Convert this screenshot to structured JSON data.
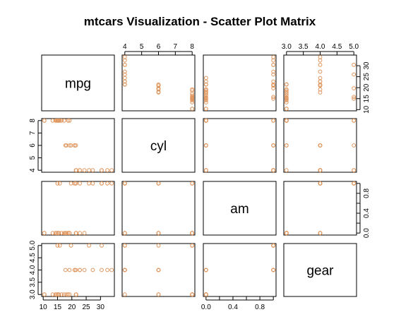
{
  "chart_data": {
    "type": "scatter",
    "title": "mtcars Visualization - Scatter Plot Matrix",
    "variables": [
      "mpg",
      "cyl",
      "am",
      "gear"
    ],
    "ranges": {
      "mpg": [
        10.4,
        33.9
      ],
      "cyl": [
        4,
        8
      ],
      "am": [
        0,
        1
      ],
      "gear": [
        3,
        5
      ]
    },
    "ticks": {
      "mpg": {
        "values": [
          10,
          15,
          20,
          25,
          30
        ],
        "labels": [
          "10",
          "15",
          "20",
          "25",
          "30"
        ]
      },
      "cyl": {
        "values": [
          4,
          5,
          6,
          7,
          8
        ],
        "labels": [
          "4",
          "5",
          "6",
          "7",
          "8"
        ]
      },
      "am": {
        "values": [
          0,
          0.2,
          0.4,
          0.6,
          0.8,
          1.0
        ],
        "labels": [
          "0.0",
          "",
          "0.4",
          "",
          "0.8",
          ""
        ]
      },
      "gear": {
        "values": [
          3,
          3.5,
          4,
          4.5,
          5
        ],
        "labels": [
          "3.0",
          "3.5",
          "4.0",
          "4.5",
          "5.0"
        ]
      }
    },
    "axis_sides": {
      "top": [
        1,
        3
      ],
      "bottom": [
        0,
        2
      ],
      "left": [
        1,
        3
      ],
      "right": [
        0,
        2
      ]
    },
    "point_color": "#E0955C",
    "observations": {
      "mpg": [
        21,
        21,
        22.8,
        21.4,
        18.7,
        18.1,
        14.3,
        24.4,
        22.8,
        19.2,
        17.8,
        16.4,
        17.3,
        15.2,
        10.4,
        10.4,
        14.7,
        32.4,
        30.4,
        33.9,
        21.5,
        15.5,
        15.2,
        13.3,
        19.2,
        27.3,
        26,
        30.4,
        15.8,
        19.7,
        15,
        21.4
      ],
      "cyl": [
        6,
        6,
        4,
        6,
        8,
        6,
        8,
        4,
        4,
        6,
        6,
        8,
        8,
        8,
        8,
        8,
        8,
        4,
        4,
        4,
        4,
        8,
        8,
        8,
        8,
        4,
        4,
        4,
        8,
        6,
        8,
        4
      ],
      "am": [
        1,
        1,
        1,
        0,
        0,
        0,
        0,
        0,
        0,
        0,
        0,
        0,
        0,
        0,
        0,
        0,
        0,
        1,
        1,
        1,
        0,
        0,
        0,
        0,
        0,
        1,
        1,
        1,
        1,
        1,
        1,
        1
      ],
      "gear": [
        4,
        4,
        4,
        3,
        3,
        3,
        3,
        4,
        4,
        4,
        4,
        3,
        3,
        3,
        3,
        3,
        3,
        4,
        4,
        4,
        3,
        3,
        3,
        3,
        3,
        4,
        5,
        5,
        5,
        5,
        5,
        4
      ]
    }
  }
}
